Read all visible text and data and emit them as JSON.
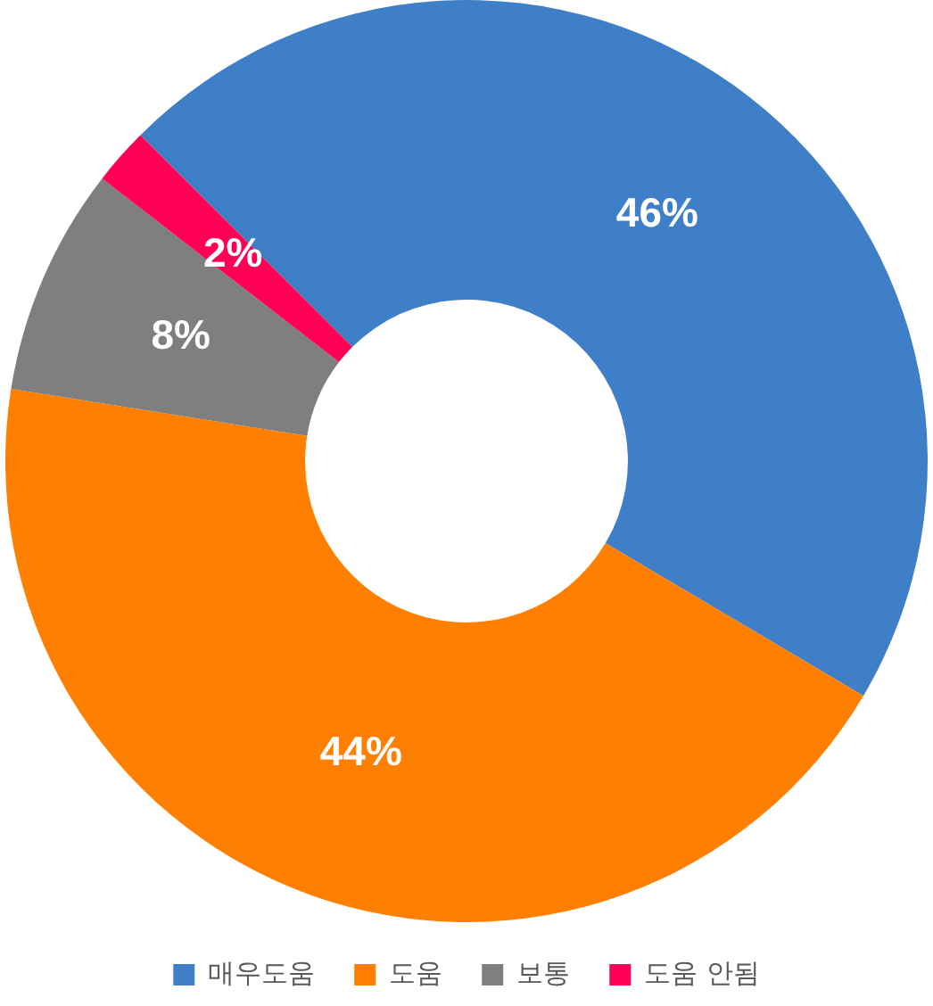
{
  "chart_data": {
    "type": "donut",
    "categories": [
      "매우도움",
      "도움",
      "보통",
      "도움 안됨"
    ],
    "values": [
      46,
      44,
      8,
      2
    ],
    "colors": [
      "#3f7fc8",
      "#ff8000",
      "#7f7f7f",
      "#ff0055"
    ],
    "value_labels": [
      "46%",
      "44%",
      "8%",
      "2%"
    ],
    "legend": "bottom"
  }
}
